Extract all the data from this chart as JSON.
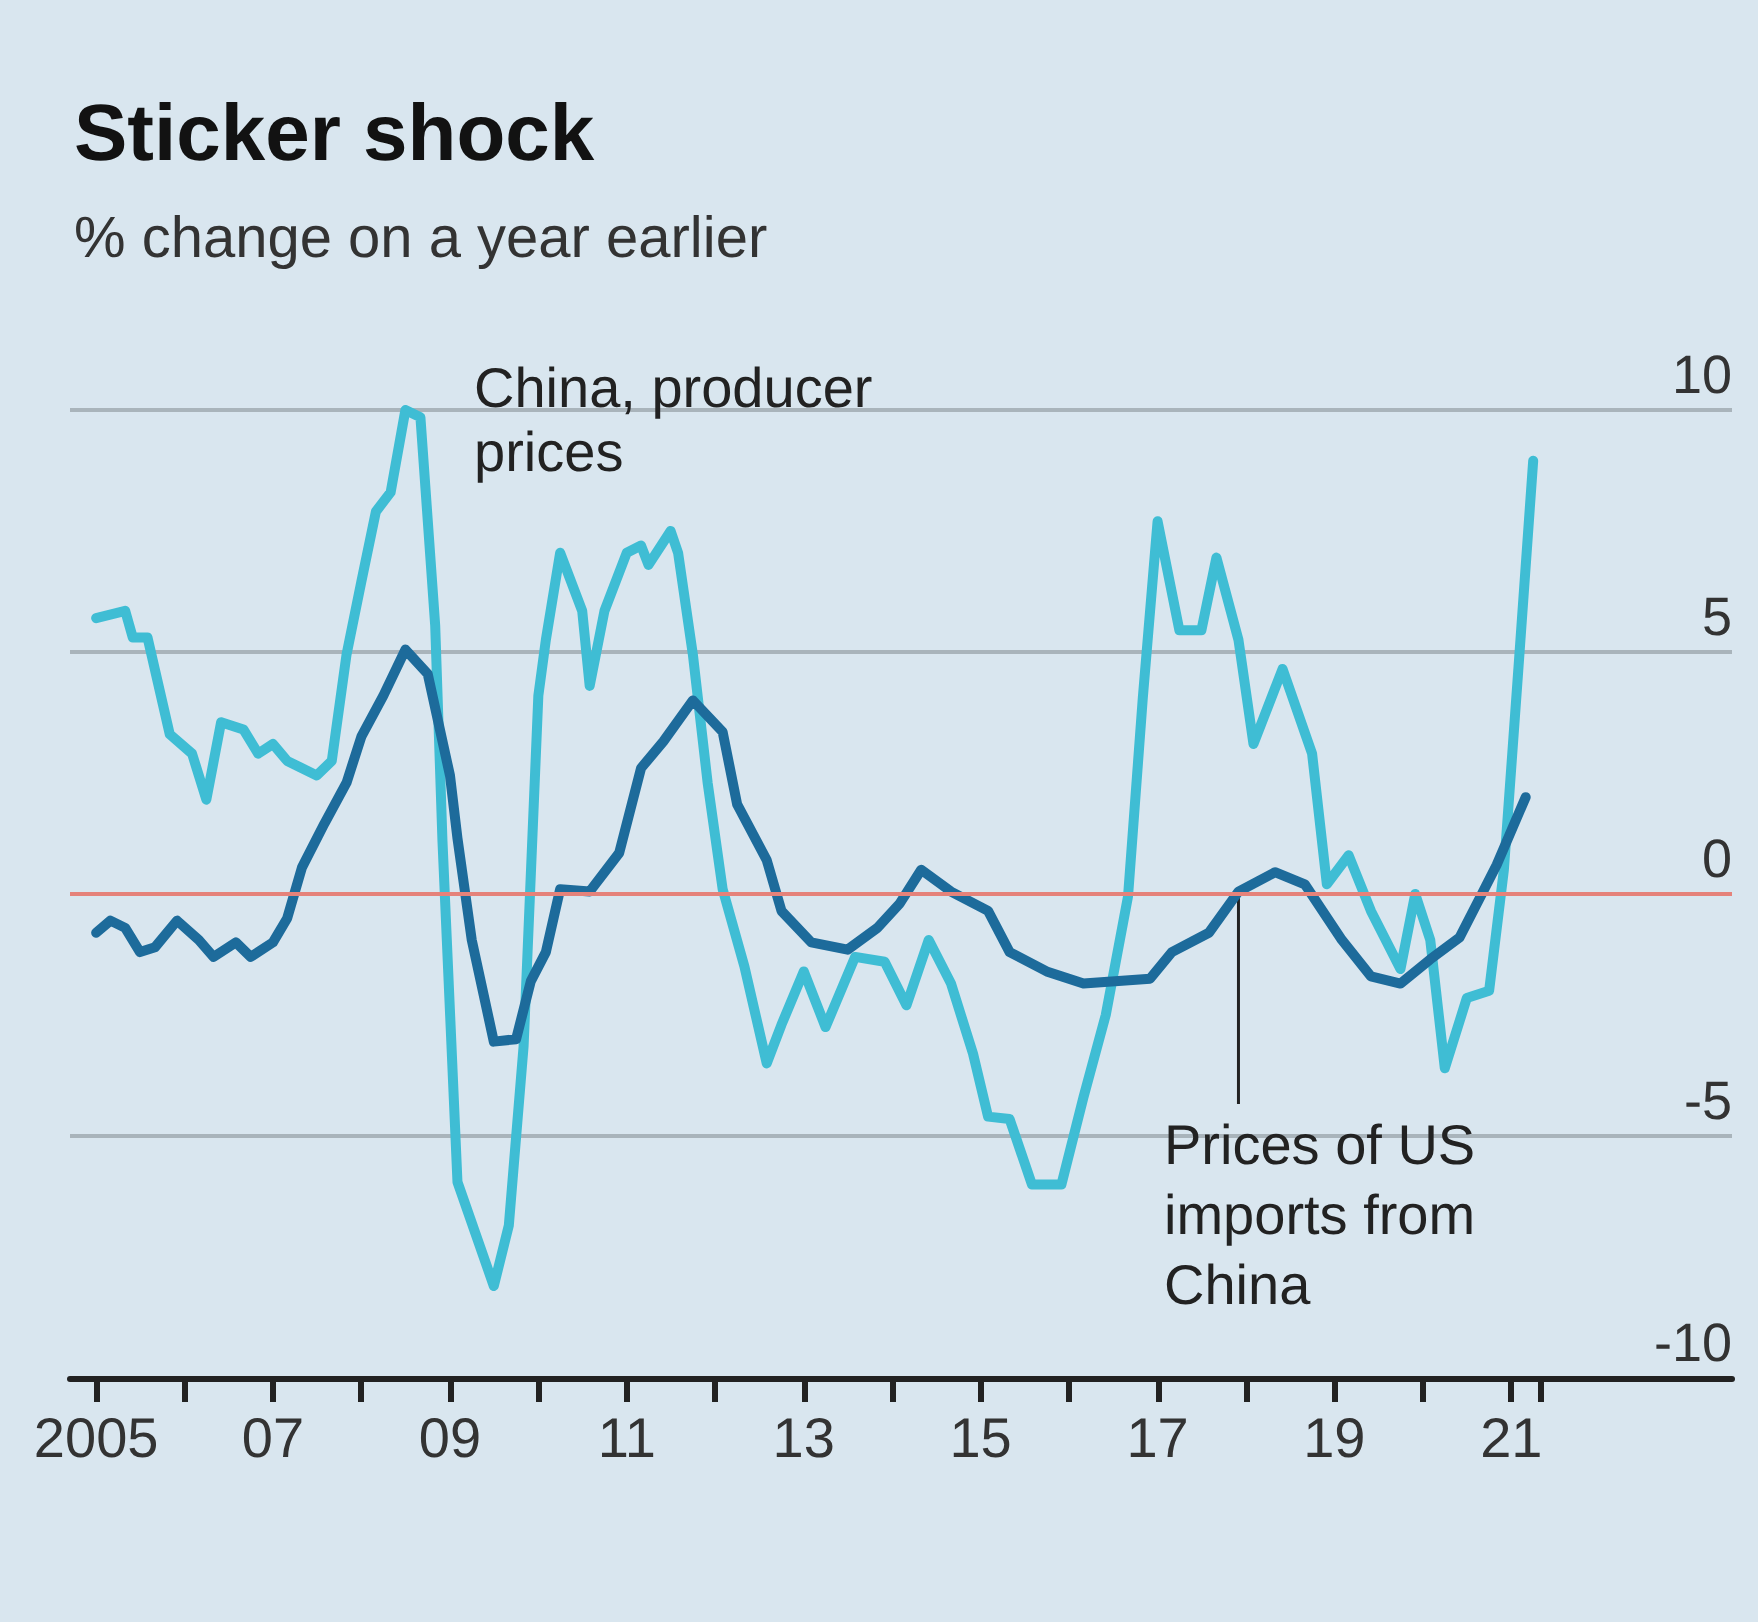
{
  "chart_data": {
    "type": "line",
    "title": "Sticker shock",
    "subtitle": "% change on a year earlier",
    "series": [
      {
        "name": "China, producer prices",
        "color": "#3fbdd4",
        "x": [
          "2005-01",
          "2005-05",
          "2005-06",
          "2005-08",
          "2005-11",
          "2006-02",
          "2006-04",
          "2006-06",
          "2006-09",
          "2006-11",
          "2007-01",
          "2007-03",
          "2007-07",
          "2007-09",
          "2007-11",
          "2008-01",
          "2008-03",
          "2008-05",
          "2008-07",
          "2008-09",
          "2008-11",
          "2008-12",
          "2009-02",
          "2009-07",
          "2009-09",
          "2009-11",
          "2010-01",
          "2010-02",
          "2010-04",
          "2010-07",
          "2010-08",
          "2010-10",
          "2011-01",
          "2011-03",
          "2011-04",
          "2011-07",
          "2011-08",
          "2011-10",
          "2011-12",
          "2012-02",
          "2012-05",
          "2012-08",
          "2012-10",
          "2013-01",
          "2013-04",
          "2013-08",
          "2013-12",
          "2014-03",
          "2014-06",
          "2014-09",
          "2014-12",
          "2015-02",
          "2015-05",
          "2015-08",
          "2015-12",
          "2016-03",
          "2016-06",
          "2016-09",
          "2016-11",
          "2017-01",
          "2017-04",
          "2017-07",
          "2017-09",
          "2017-12",
          "2018-02",
          "2018-06",
          "2018-10",
          "2018-12",
          "2019-03",
          "2019-06",
          "2019-10",
          "2019-12",
          "2020-02",
          "2020-04",
          "2020-07",
          "2020-10",
          "2020-12",
          "2021-02",
          "2021-04"
        ],
        "values": [
          5.7,
          5.85,
          5.3,
          5.3,
          3.3,
          2.9,
          1.95,
          3.55,
          3.4,
          2.9,
          3.1,
          2.75,
          2.45,
          2.75,
          4.95,
          6.45,
          7.9,
          8.3,
          10.0,
          9.85,
          5.55,
          1.1,
          -5.95,
          -8.1,
          -6.85,
          -3.15,
          4.1,
          5.25,
          7.05,
          5.85,
          4.3,
          5.85,
          7.05,
          7.2,
          6.8,
          7.5,
          7.05,
          4.95,
          2.3,
          0.1,
          -1.5,
          -3.5,
          -2.7,
          -1.6,
          -2.75,
          -1.3,
          -1.4,
          -2.3,
          -0.95,
          -1.85,
          -3.3,
          -4.6,
          -4.65,
          -6.0,
          -6.0,
          -4.2,
          -2.5,
          -0.05,
          4.05,
          7.7,
          5.45,
          5.45,
          6.95,
          5.25,
          3.1,
          4.65,
          2.9,
          0.2,
          0.8,
          -0.35,
          -1.55,
          0,
          -0.95,
          -3.6,
          -2.15,
          -2.0,
          0.5,
          4.8,
          8.95
        ]
      },
      {
        "name": "Prices of US imports from China",
        "color": "#1d6b9b",
        "x": [
          "2005-01",
          "2005-03",
          "2005-05",
          "2005-07",
          "2005-09",
          "2005-12",
          "2006-03",
          "2006-05",
          "2006-08",
          "2006-10",
          "2007-01",
          "2007-03",
          "2007-05",
          "2007-08",
          "2007-11",
          "2008-01",
          "2008-04",
          "2008-07",
          "2008-10",
          "2009-01",
          "2009-02",
          "2009-04",
          "2009-07",
          "2009-10",
          "2009-12",
          "2010-02",
          "2010-04",
          "2010-08",
          "2010-12",
          "2011-03",
          "2011-06",
          "2011-10",
          "2012-02",
          "2012-04",
          "2012-08",
          "2012-10",
          "2013-02",
          "2013-07",
          "2013-11",
          "2014-02",
          "2014-05",
          "2014-09",
          "2015-02",
          "2015-05",
          "2015-10",
          "2016-03",
          "2016-12",
          "2017-03",
          "2017-08",
          "2017-12",
          "2018-05",
          "2018-09",
          "2019-02",
          "2019-06",
          "2019-10",
          "2020-02",
          "2020-06",
          "2020-09",
          "2020-11",
          "2021-03"
        ],
        "values": [
          -0.8,
          -0.55,
          -0.7,
          -1.2,
          -1.1,
          -0.55,
          -0.95,
          -1.3,
          -1.0,
          -1.3,
          -1.0,
          -0.5,
          0.55,
          1.45,
          2.3,
          3.25,
          4.1,
          5.05,
          4.55,
          2.45,
          1.15,
          -0.95,
          -3.05,
          -3.0,
          -1.8,
          -1.2,
          0.1,
          0.05,
          0.85,
          2.6,
          3.15,
          4.0,
          3.35,
          1.85,
          0.7,
          -0.35,
          -1.0,
          -1.15,
          -0.7,
          -0.2,
          0.5,
          0.05,
          -0.35,
          -1.2,
          -1.6,
          -1.85,
          -1.75,
          -1.2,
          -0.8,
          0.05,
          0.45,
          0.2,
          -0.95,
          -1.7,
          -1.85,
          -1.35,
          -0.9,
          0,
          0.6,
          2.0
        ]
      }
    ],
    "xlim": [
      "2004-09-15",
      "2023-07"
    ],
    "xticks": [
      {
        "value": "2005",
        "label": "2005"
      },
      {
        "value": "2006",
        "label": null
      },
      {
        "value": "2007",
        "label": "07"
      },
      {
        "value": "2008",
        "label": null
      },
      {
        "value": "2009",
        "label": "09"
      },
      {
        "value": "2010",
        "label": null
      },
      {
        "value": "2011",
        "label": "11"
      },
      {
        "value": "2012",
        "label": null
      },
      {
        "value": "2013",
        "label": "13"
      },
      {
        "value": "2014",
        "label": null
      },
      {
        "value": "2015",
        "label": "15"
      },
      {
        "value": "2016",
        "label": null
      },
      {
        "value": "2017",
        "label": "17"
      },
      {
        "value": "2018",
        "label": null
      },
      {
        "value": "2019",
        "label": "19"
      },
      {
        "value": "2020",
        "label": null
      },
      {
        "value": "2021",
        "label": "21"
      },
      {
        "value": "2021-05",
        "label": null
      }
    ],
    "ylim": [
      -10,
      10
    ],
    "yticks": [
      -10,
      -5,
      0,
      5,
      10
    ],
    "ref_lines": [
      {
        "axis": "y",
        "value": 0,
        "color": "#e5827a"
      }
    ],
    "grid": "y",
    "legend": false,
    "marker": "none",
    "line_style": "solid"
  }
}
